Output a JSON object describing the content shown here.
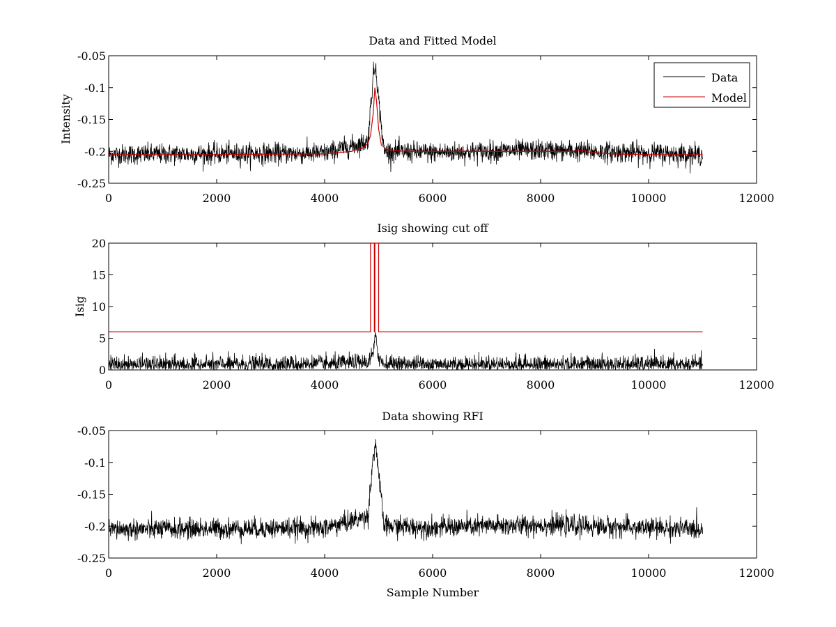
{
  "chart_data": [
    {
      "type": "line",
      "title": "Data and Fitted Model",
      "xlabel": "",
      "ylabel": "Intensity",
      "xlim": [
        0,
        12000
      ],
      "ylim": [
        -0.25,
        -0.05
      ],
      "x_ticks": [
        "0",
        "2000",
        "4000",
        "6000",
        "8000",
        "10000",
        "12000"
      ],
      "y_ticks": [
        "-0.05",
        "-0.1",
        "-0.15",
        "-0.2",
        "-0.25"
      ],
      "legend": {
        "placement": "top-right",
        "entries": [
          "Data",
          "Model"
        ]
      },
      "series": [
        {
          "name": "Data",
          "color": "#000000",
          "description_x": [
            0,
            4000,
            4800,
            4900,
            4950,
            5000,
            5100,
            6000,
            8000,
            11000
          ],
          "values": [
            -0.205,
            -0.203,
            -0.185,
            -0.08,
            -0.065,
            -0.12,
            -0.2,
            -0.202,
            -0.198,
            -0.205
          ],
          "noise_std": 0.008
        },
        {
          "name": "Model",
          "color": "#cc0000",
          "x": [
            0,
            2000,
            4000,
            4500,
            4700,
            4800,
            4850,
            4900,
            4930,
            4960,
            5000,
            5050,
            5150,
            5300,
            5600,
            6000,
            6500,
            6520,
            6540,
            7000,
            8000,
            8600,
            8800,
            8900,
            9000,
            9300,
            10000,
            11000
          ],
          "values": [
            -0.205,
            -0.205,
            -0.204,
            -0.2,
            -0.195,
            -0.188,
            -0.175,
            -0.14,
            -0.1,
            -0.12,
            -0.165,
            -0.19,
            -0.197,
            -0.199,
            -0.2,
            -0.2,
            -0.2,
            -0.196,
            -0.2,
            -0.2,
            -0.2,
            -0.2,
            -0.198,
            -0.201,
            -0.202,
            -0.204,
            -0.205,
            -0.205
          ]
        }
      ]
    },
    {
      "type": "line",
      "title": "Isig showing cut off",
      "xlabel": "",
      "ylabel": "Isig",
      "xlim": [
        0,
        12000
      ],
      "ylim": [
        0,
        20
      ],
      "x_ticks": [
        "0",
        "2000",
        "4000",
        "6000",
        "8000",
        "10000",
        "12000"
      ],
      "y_ticks": [
        "20",
        "15",
        "10",
        "5",
        "0"
      ],
      "series": [
        {
          "name": "Isig",
          "color": "#000000",
          "description_x": [
            0,
            4000,
            4800,
            4900,
            4950,
            5000,
            5100,
            11000
          ],
          "values": [
            0.8,
            0.9,
            1.2,
            2.5,
            5.5,
            2.0,
            0.9,
            0.8
          ],
          "noise_std": 0.7
        },
        {
          "name": "Cut off",
          "color": "#cc0000",
          "x": [
            0,
            4850,
            4850,
            4920,
            4920,
            4930,
            4930,
            5000,
            5000,
            11000
          ],
          "values": [
            6,
            6,
            20,
            20,
            6,
            6,
            20,
            20,
            6,
            6
          ]
        }
      ]
    },
    {
      "type": "line",
      "title": "Data showing RFI",
      "xlabel": "Sample Number",
      "ylabel": "",
      "xlim": [
        0,
        12000
      ],
      "ylim": [
        -0.25,
        -0.05
      ],
      "x_ticks": [
        "0",
        "2000",
        "4000",
        "6000",
        "8000",
        "10000",
        "12000"
      ],
      "y_ticks": [
        "-0.05",
        "-0.1",
        "-0.15",
        "-0.2",
        "-0.25"
      ],
      "series": [
        {
          "name": "Data",
          "color": "#000000",
          "description_x": [
            0,
            4000,
            4800,
            4900,
            4950,
            5000,
            5100,
            6000,
            8000,
            11000
          ],
          "values": [
            -0.205,
            -0.203,
            -0.185,
            -0.09,
            -0.07,
            -0.12,
            -0.2,
            -0.202,
            -0.198,
            -0.205
          ],
          "noise_std": 0.008
        }
      ]
    }
  ]
}
